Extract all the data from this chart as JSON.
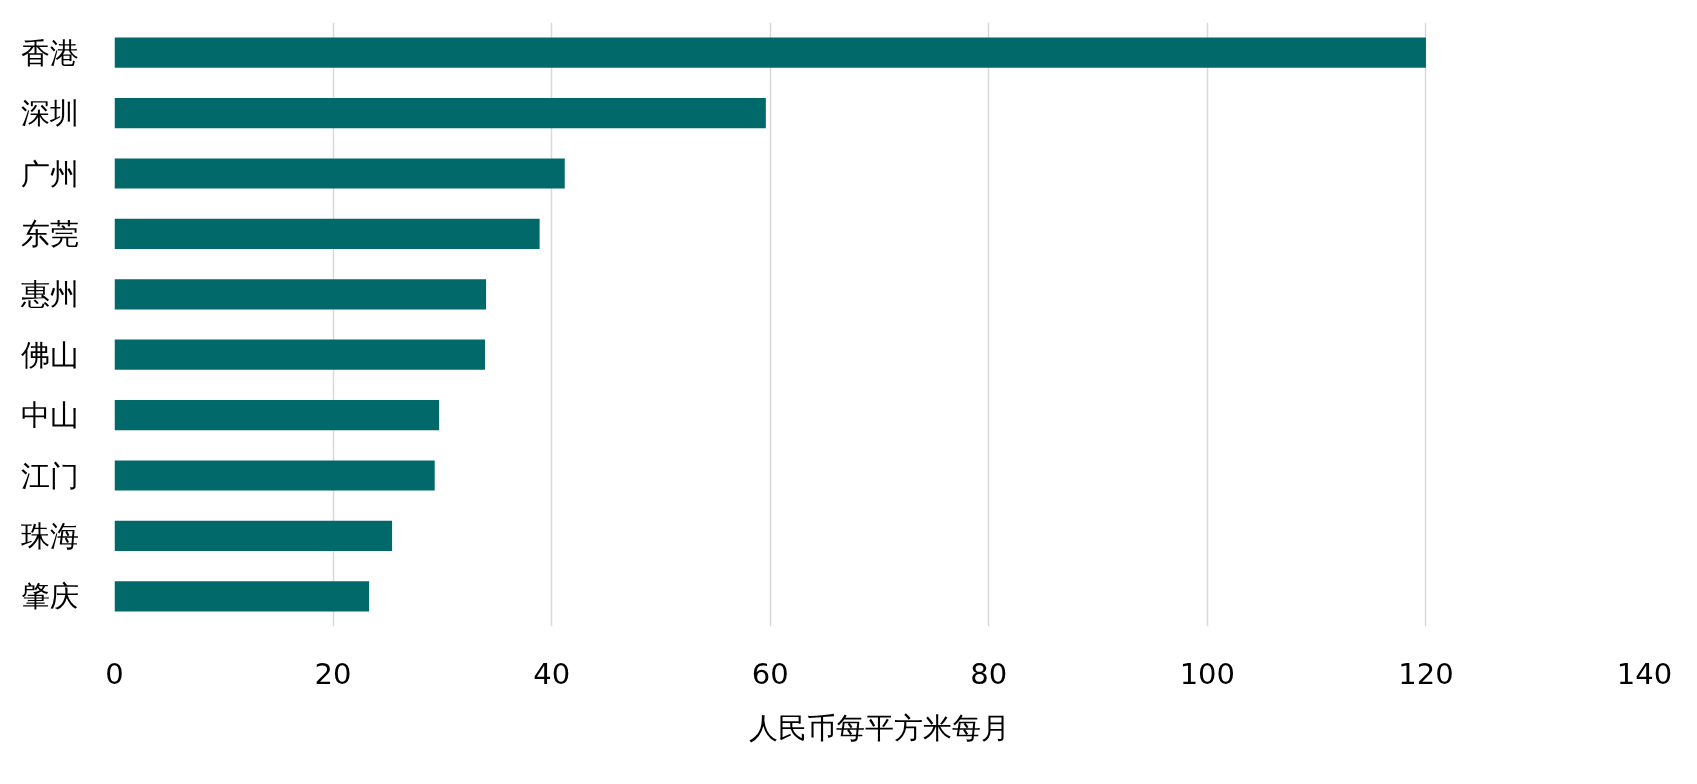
{
  "chart_data": {
    "type": "bar",
    "orientation": "horizontal",
    "categories": [
      "香港",
      "深圳",
      "广州",
      "东莞",
      "惠州",
      "佛山",
      "中山",
      "江门",
      "珠海",
      "肇庆"
    ],
    "values": [
      120,
      59.6,
      41.2,
      38.9,
      34.0,
      33.9,
      29.7,
      29.3,
      25.4,
      23.3
    ],
    "color": "#02696a",
    "xlabel": "人民币每平方米每月",
    "xlim": [
      0,
      140
    ],
    "xticks": [
      0,
      20,
      40,
      60,
      80,
      100,
      120,
      140
    ],
    "grid": "x"
  }
}
